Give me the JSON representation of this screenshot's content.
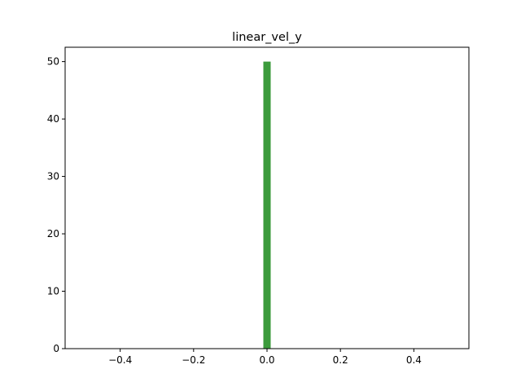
{
  "chart_data": {
    "type": "bar",
    "title": "linear_vel_y",
    "xlabel": "",
    "ylabel": "",
    "xlim": [
      -0.55,
      0.55
    ],
    "ylim": [
      0,
      52.5
    ],
    "grid": false,
    "bars": [
      {
        "x0": -0.01,
        "x1": 0.01,
        "value": 50
      }
    ],
    "bar_color": "#3c9b3c",
    "x_ticks": [
      -0.4,
      -0.2,
      0.0,
      0.2,
      0.4
    ],
    "x_tick_labels": [
      "−0.4",
      "−0.2",
      "0.0",
      "0.2",
      "0.4"
    ],
    "y_ticks": [
      0,
      10,
      20,
      30,
      40,
      50
    ],
    "y_tick_labels": [
      "0",
      "10",
      "20",
      "30",
      "40",
      "50"
    ]
  }
}
